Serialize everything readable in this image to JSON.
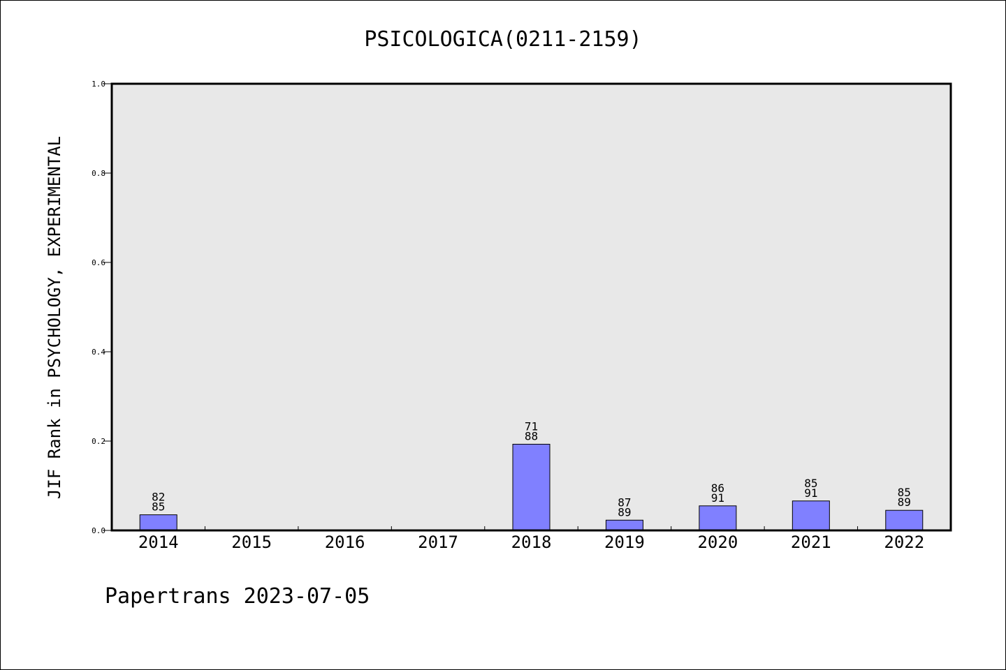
{
  "chart_data": {
    "type": "bar",
    "title": "PSICOLOGICA(0211-2159)",
    "xlabel": "",
    "ylabel": "JIF Rank in PSYCHOLOGY, EXPERIMENTAL",
    "ylim": [
      0,
      1.0
    ],
    "yticks": [
      "0.0",
      "0.2",
      "0.4",
      "0.6",
      "0.8",
      "1.0"
    ],
    "categories": [
      "2014",
      "2015",
      "2016",
      "2017",
      "2018",
      "2019",
      "2020",
      "2021",
      "2022"
    ],
    "values": [
      0.035,
      null,
      null,
      null,
      0.193,
      0.023,
      0.055,
      0.066,
      0.045
    ],
    "bar_labels": [
      {
        "top": "82",
        "bottom": "85"
      },
      null,
      null,
      null,
      {
        "top": "71",
        "bottom": "88"
      },
      {
        "top": "87",
        "bottom": "89"
      },
      {
        "top": "86",
        "bottom": "91"
      },
      {
        "top": "85",
        "bottom": "91"
      },
      {
        "top": "85",
        "bottom": "89"
      }
    ],
    "grid": false,
    "colors": {
      "bar_fill": "#8080ff",
      "bar_stroke": "#000000",
      "plot_background": "#e8e8e8"
    }
  },
  "footer": "Papertrans 2023-07-05"
}
